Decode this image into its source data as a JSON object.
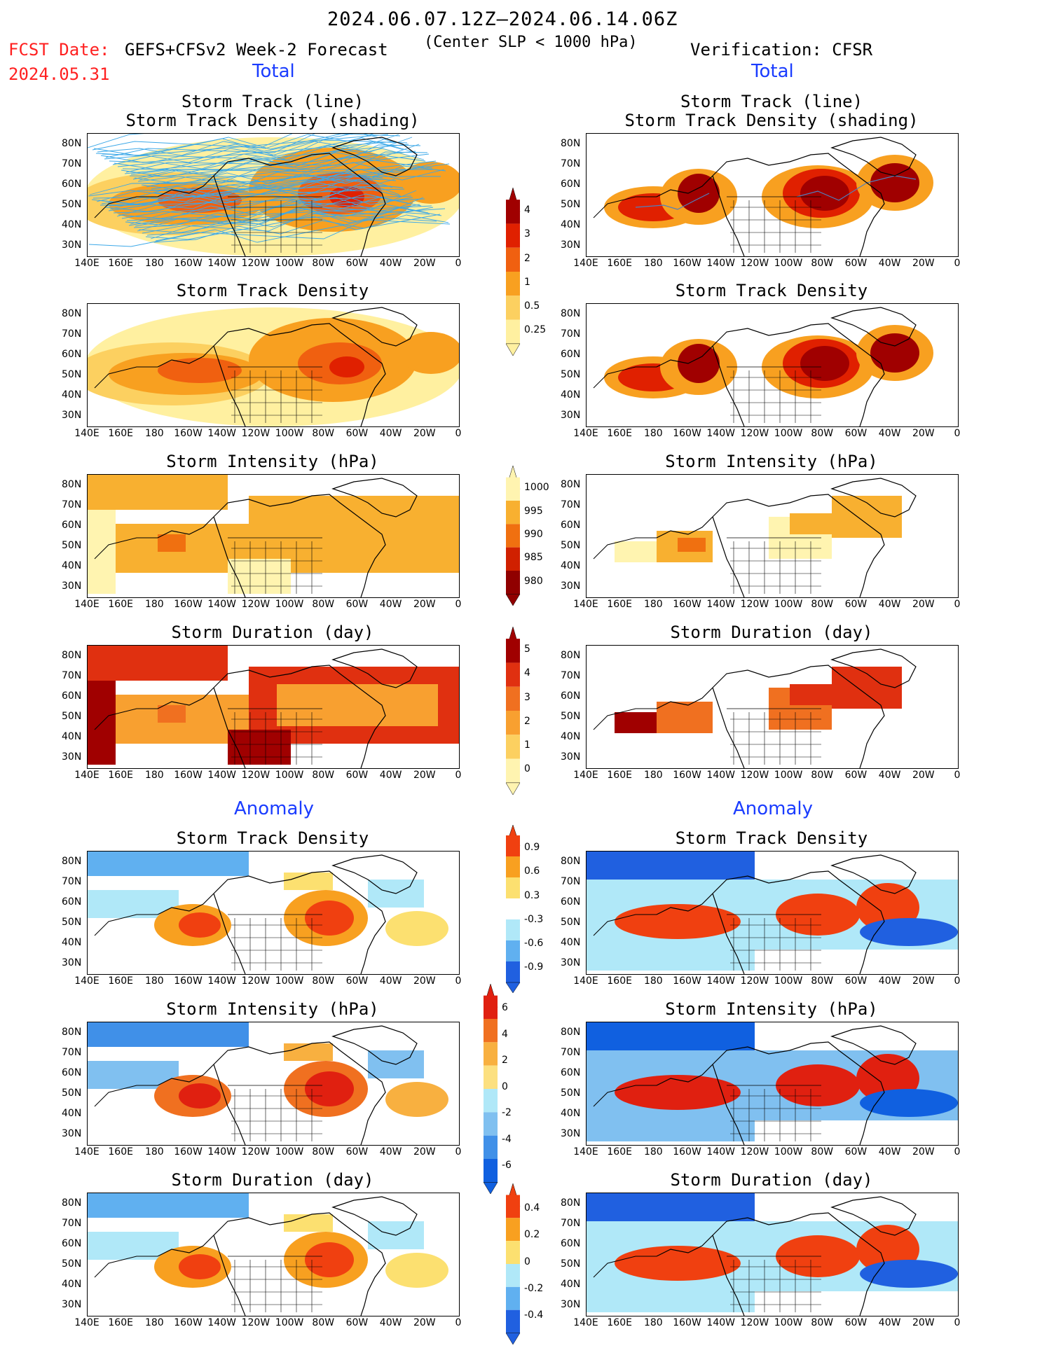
{
  "header": {
    "date_range": "2024.06.07.12Z–2024.06.14.06Z",
    "fcst_date_label": "FCST Date:",
    "fcst_date": "2024.05.31",
    "model": "GEFS+CFSv2 Week-2 Forecast",
    "condition": "(Center SLP < 1000 hPa)",
    "verification": "Verification: CFSR"
  },
  "sections": {
    "total_left": "Total",
    "total_right": "Total",
    "anomaly_left": "Anomaly",
    "anomaly_right": "Anomaly"
  },
  "panel_titles": {
    "track_line": "Storm Track (line)",
    "track_shading": "Storm Track Density (shading)",
    "density": "Storm Track Density",
    "intensity": "Storm Intensity (hPa)",
    "duration": "Storm Duration (day)"
  },
  "axes": {
    "lat_labels": [
      "80N",
      "70N",
      "60N",
      "50N",
      "40N",
      "30N"
    ],
    "lon_labels": [
      "140E",
      "160E",
      "180",
      "160W",
      "140W",
      "120W",
      "100W",
      "80W",
      "60W",
      "40W",
      "20W",
      "0"
    ]
  },
  "colorbars": {
    "density_total": {
      "labels": [
        "4",
        "3",
        "2",
        "1",
        "0.5",
        "0.25"
      ],
      "colors": [
        "#a00000",
        "#e02000",
        "#f06010",
        "#f8a020",
        "#fcd060",
        "#fff0a0"
      ]
    },
    "intensity_total": {
      "labels": [
        "1000",
        "995",
        "990",
        "985",
        "980"
      ],
      "colors": [
        "#fff4b0",
        "#f8b030",
        "#f07010",
        "#d02000",
        "#900000"
      ]
    },
    "duration_total": {
      "labels": [
        "5",
        "4",
        "3",
        "2",
        "1",
        "0"
      ],
      "colors": [
        "#a00000",
        "#e03010",
        "#f07020",
        "#f8a030",
        "#fcd060",
        "#fff4b0"
      ]
    },
    "density_anom": {
      "labels": [
        "0.9",
        "0.6",
        "0.3",
        "-0.3",
        "-0.6",
        "-0.9"
      ],
      "colors": [
        "#f04010",
        "#f8a020",
        "#fce070",
        "#ffffff",
        "#b0e8f8",
        "#60b0f0",
        "#2060e0"
      ]
    },
    "intensity_anom": {
      "labels": [
        "6",
        "4",
        "2",
        "0",
        "-2",
        "-4",
        "-6"
      ],
      "colors": [
        "#e02010",
        "#f07020",
        "#f8b040",
        "#fce080",
        "#b0e8f8",
        "#80c0f0",
        "#4090e8",
        "#1060e0"
      ]
    },
    "duration_anom": {
      "labels": [
        "0.4",
        "0.2",
        "0",
        "-0.2",
        "-0.4"
      ],
      "colors": [
        "#f04010",
        "#f8a020",
        "#fce070",
        "#b0e8f8",
        "#60b0f0",
        "#2060e0"
      ]
    }
  }
}
